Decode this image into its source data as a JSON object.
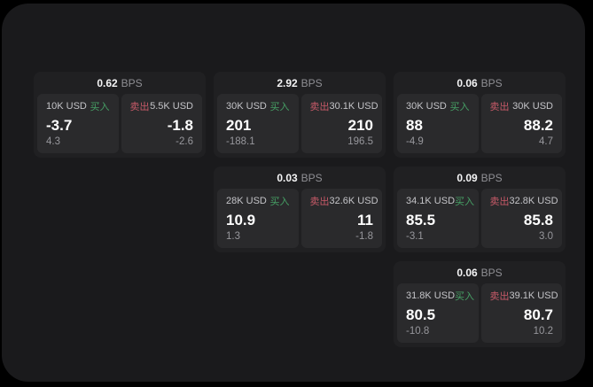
{
  "colors": {
    "page_bg": "#000000",
    "container_bg": "#1a1a1c",
    "card_bg": "#202022",
    "panel_bg": "#2a2a2c",
    "buy_accent": "#46a065",
    "sell_accent": "#c75a68"
  },
  "cards": [
    {
      "bps_value": "0.62",
      "bps_unit": "BPS",
      "buy": {
        "amount": "10K USD",
        "side": "买入",
        "price": "-3.7",
        "change": "4.3"
      },
      "sell": {
        "side": "卖出",
        "amount": "5.5K USD",
        "price": "-1.8",
        "change": "-2.6"
      }
    },
    {
      "bps_value": "2.92",
      "bps_unit": "BPS",
      "buy": {
        "amount": "30K USD",
        "side": "买入",
        "price": "201",
        "change": "-188.1"
      },
      "sell": {
        "side": "卖出",
        "amount": "30.1K USD",
        "price": "210",
        "change": "196.5"
      }
    },
    {
      "bps_value": "0.06",
      "bps_unit": "BPS",
      "buy": {
        "amount": "30K USD",
        "side": "买入",
        "price": "88",
        "change": "-4.9"
      },
      "sell": {
        "side": "卖出",
        "amount": "30K USD",
        "price": "88.2",
        "change": "4.7"
      }
    },
    {
      "bps_value": "0.03",
      "bps_unit": "BPS",
      "buy": {
        "amount": "28K USD",
        "side": "买入",
        "price": "10.9",
        "change": "1.3"
      },
      "sell": {
        "side": "卖出",
        "amount": "32.6K USD",
        "price": "11",
        "change": "-1.8"
      }
    },
    {
      "bps_value": "0.09",
      "bps_unit": "BPS",
      "buy": {
        "amount": "34.1K USD",
        "side": "买入",
        "price": "85.5",
        "change": "-3.1"
      },
      "sell": {
        "side": "卖出",
        "amount": "32.8K USD",
        "price": "85.8",
        "change": "3.0"
      }
    },
    {
      "bps_value": "0.06",
      "bps_unit": "BPS",
      "buy": {
        "amount": "31.8K USD",
        "side": "买入",
        "price": "80.5",
        "change": "-10.8"
      },
      "sell": {
        "side": "卖出",
        "amount": "39.1K USD",
        "price": "80.7",
        "change": "10.2"
      }
    }
  ]
}
